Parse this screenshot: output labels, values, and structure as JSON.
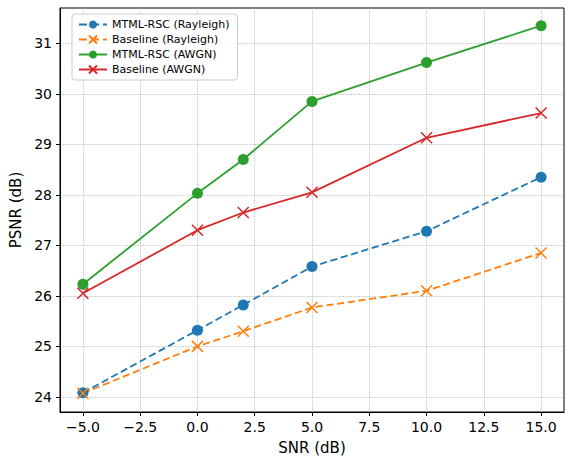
{
  "chart_data": {
    "type": "line",
    "x_label": "SNR (dB)",
    "y_label": "PSNR (dB)",
    "x": [
      -5,
      0,
      2,
      5,
      10,
      15
    ],
    "xlim": [
      -6,
      16
    ],
    "xticks": [
      {
        "value": -5,
        "label": "−5.0"
      },
      {
        "value": -2.5,
        "label": "−2.5"
      },
      {
        "value": 0,
        "label": "0.0"
      },
      {
        "value": 2.5,
        "label": "2.5"
      },
      {
        "value": 5,
        "label": "5.0"
      },
      {
        "value": 7.5,
        "label": "7.5"
      },
      {
        "value": 10,
        "label": "10.0"
      },
      {
        "value": 12.5,
        "label": "12.5"
      },
      {
        "value": 15,
        "label": "15.0"
      }
    ],
    "ylim": [
      23.7,
      31.7
    ],
    "yticks": [
      24,
      25,
      26,
      27,
      28,
      29,
      30,
      31
    ],
    "grid": true,
    "legend": "upper left",
    "series": [
      {
        "name": "MTML-RSC (Rayleigh)",
        "color": "#1f77b4",
        "marker": "circle",
        "line_style": "dashed",
        "values": [
          24.08,
          25.32,
          25.82,
          26.58,
          27.28,
          28.35
        ]
      },
      {
        "name": "Baseline (Rayleigh)",
        "color": "#ff7f0e",
        "marker": "x",
        "line_style": "dashed",
        "values": [
          24.07,
          25.0,
          25.3,
          25.77,
          26.1,
          26.85
        ]
      },
      {
        "name": "MTML-RSC (AWGN)",
        "color": "#2ca02c",
        "marker": "circle",
        "line_style": "solid",
        "values": [
          26.23,
          28.03,
          28.7,
          29.85,
          30.62,
          31.35
        ]
      },
      {
        "name": "Baseline (AWGN)",
        "color": "#d62728",
        "marker": "x",
        "line_style": "solid",
        "values": [
          26.05,
          27.3,
          27.65,
          28.05,
          29.13,
          29.62
        ]
      }
    ]
  }
}
